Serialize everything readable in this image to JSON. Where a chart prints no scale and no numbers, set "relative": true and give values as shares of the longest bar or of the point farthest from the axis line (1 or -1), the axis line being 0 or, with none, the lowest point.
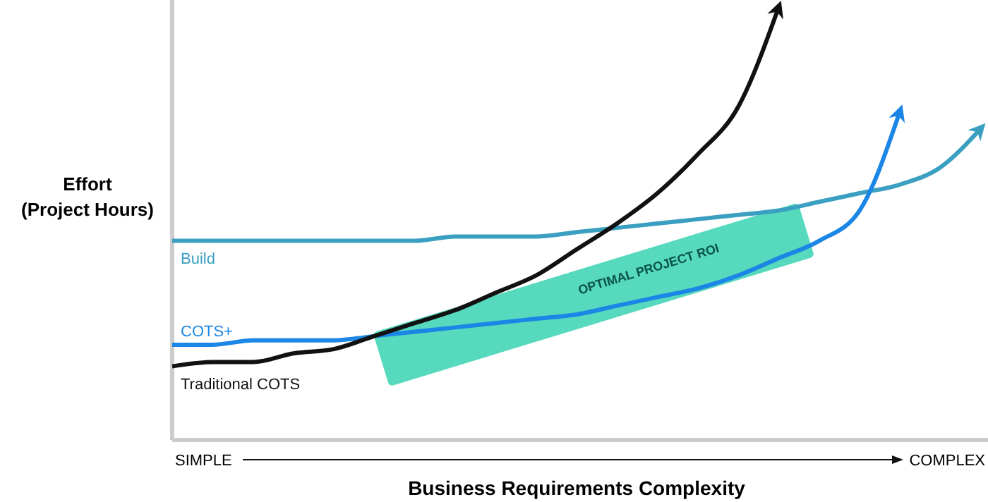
{
  "chart_data": {
    "type": "line",
    "relative": true,
    "xlabel": "Business Requirements Complexity",
    "ylabel": "Effort\n(Project Hours)",
    "categories": [
      null,
      null,
      null,
      null,
      null,
      null,
      null,
      null,
      null,
      null,
      null,
      null,
      null,
      null,
      null,
      null,
      null,
      null,
      null,
      null,
      null
    ],
    "series": [
      {
        "name": "Build",
        "color": "#3a9fc0",
        "values": [
          0.46,
          0.46,
          0.46,
          0.46,
          0.46,
          0.46,
          0.46,
          0.47,
          0.47,
          0.47,
          0.48,
          0.49,
          0.5,
          0.51,
          0.52,
          0.53,
          0.55,
          0.57,
          0.59,
          0.63,
          0.72
        ]
      },
      {
        "name": "COTS+",
        "color": "#1b86e6",
        "values": [
          0.22,
          0.22,
          0.23,
          0.23,
          0.23,
          0.24,
          0.25,
          0.26,
          0.27,
          0.28,
          0.29,
          0.31,
          0.33,
          0.35,
          0.38,
          0.42,
          0.46,
          0.53,
          0.76,
          null,
          null
        ]
      },
      {
        "name": "Traditional COTS",
        "color": "#111111",
        "values": [
          0.17,
          0.18,
          0.18,
          0.2,
          0.21,
          0.24,
          0.27,
          0.3,
          0.34,
          0.38,
          0.44,
          0.5,
          0.57,
          0.66,
          0.77,
          1.0,
          null,
          null,
          null,
          null,
          null
        ]
      }
    ],
    "annotations": [
      "OPTIMAL PROJECT ROI",
      "SIMPLE",
      "COMPLEX"
    ]
  }
}
